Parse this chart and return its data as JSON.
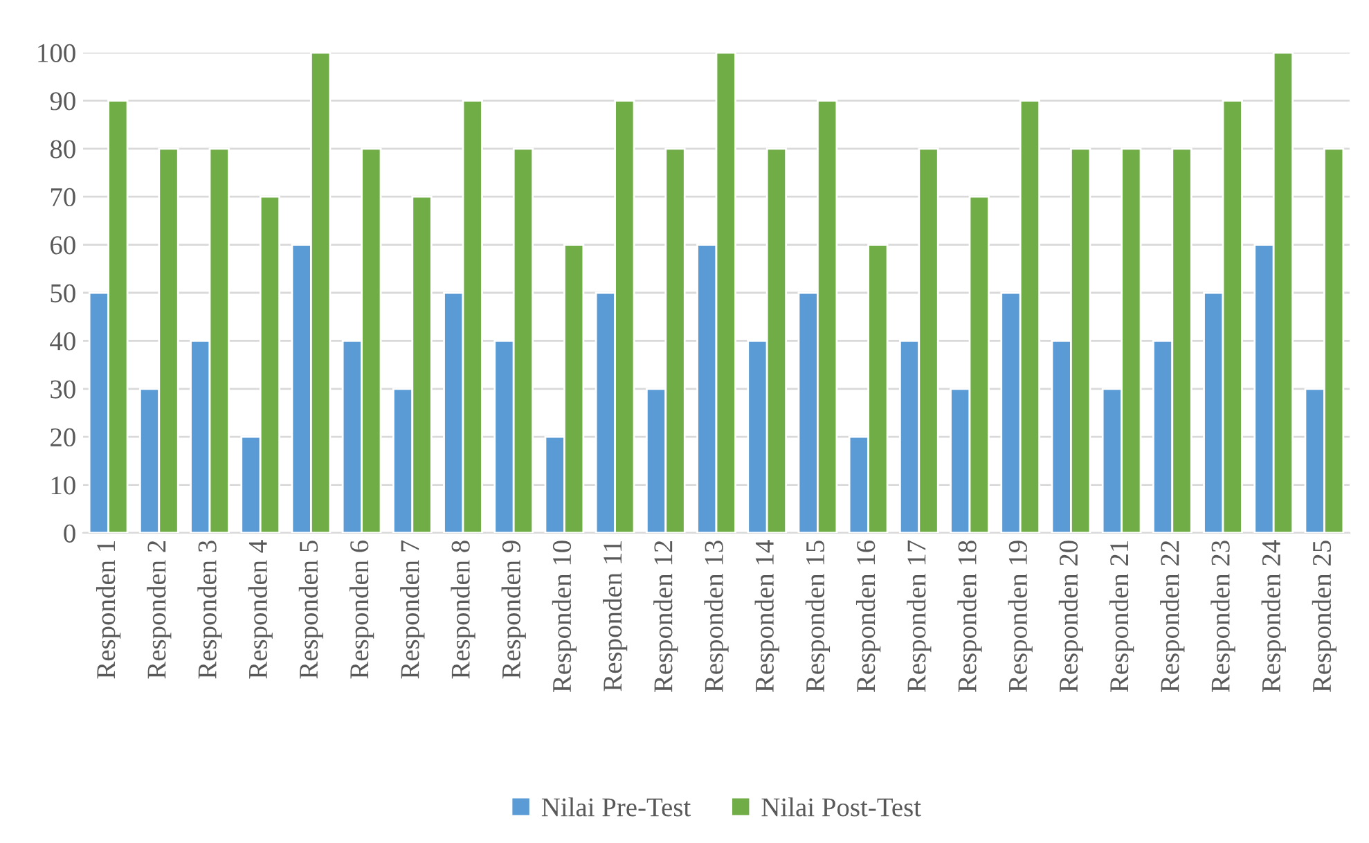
{
  "chart_data": {
    "type": "bar",
    "categories": [
      "Responden 1",
      "Responden 2",
      "Responden 3",
      "Responden 4",
      "Responden 5",
      "Responden 6",
      "Responden 7",
      "Responden 8",
      "Responden 9",
      "Responden 10",
      "Responden 11",
      "Responden 12",
      "Responden 13",
      "Responden 14",
      "Responden 15",
      "Responden 16",
      "Responden 17",
      "Responden 18",
      "Responden 19",
      "Responden 20",
      "Responden 21",
      "Responden 22",
      "Responden 23",
      "Responden 24",
      "Responden 25"
    ],
    "series": [
      {
        "name": "Nilai Pre-Test",
        "color": "#5b9bd5",
        "values": [
          50,
          30,
          40,
          20,
          60,
          40,
          30,
          50,
          40,
          20,
          50,
          30,
          60,
          40,
          50,
          20,
          40,
          30,
          50,
          40,
          30,
          40,
          50,
          60,
          30
        ]
      },
      {
        "name": "Nilai Post-Test",
        "color": "#70ad47",
        "values": [
          90,
          80,
          80,
          70,
          100,
          80,
          70,
          90,
          80,
          60,
          90,
          80,
          100,
          80,
          90,
          60,
          80,
          70,
          90,
          80,
          80,
          80,
          90,
          100,
          80
        ]
      }
    ],
    "ylim": [
      0,
      100
    ],
    "yticks": [
      0,
      10,
      20,
      30,
      40,
      50,
      60,
      70,
      80,
      90,
      100
    ],
    "grid": "y",
    "legend": "bottom"
  }
}
